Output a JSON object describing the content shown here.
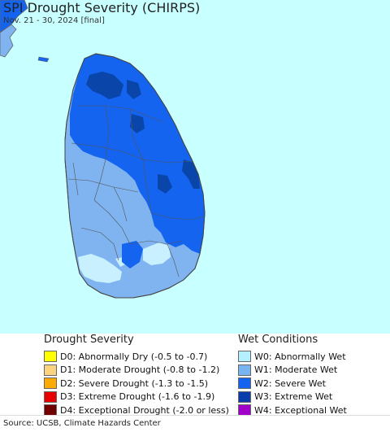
{
  "header": {
    "title": "SPI Drought Severity (CHIRPS)",
    "subtitle": "Nov. 21 - 30, 2024 [final]"
  },
  "map": {
    "ocean_color": "#c8ffff",
    "land_outline_color": "#666666",
    "colors": {
      "w0": "#c8f0ff",
      "w1": "#7fb4f0",
      "w2": "#1464f0",
      "w3": "#0a46aa",
      "w4": "#9600ff",
      "nodata_land": "#e8e8e8"
    }
  },
  "legend": {
    "drought": {
      "heading": "Drought Severity",
      "items": [
        {
          "label": "D0: Abnormally Dry (-0.5 to -0.7)",
          "color": "#ffff00"
        },
        {
          "label": "D1: Moderate Drought (-0.8 to -1.2)",
          "color": "#fcd37f"
        },
        {
          "label": "D2: Severe Drought (-1.3 to -1.5)",
          "color": "#ffaa00"
        },
        {
          "label": "D3: Extreme Drought (-1.6 to -1.9)",
          "color": "#e60000"
        },
        {
          "label": "D4: Exceptional Drought (-2.0 or less)",
          "color": "#730000"
        }
      ]
    },
    "wet": {
      "heading": "Wet Conditions",
      "items": [
        {
          "label": "W0: Abnormally Wet",
          "color": "#b4f0ff"
        },
        {
          "label": "W1: Moderate Wet",
          "color": "#78b4f0"
        },
        {
          "label": "W2: Severe Wet",
          "color": "#1464f0"
        },
        {
          "label": "W3: Extreme Wet",
          "color": "#0a3caa"
        },
        {
          "label": "W4: Exceptional Wet",
          "color": "#a000c8"
        }
      ]
    }
  },
  "footer": {
    "source": "Source: UCSB, Climate Hazards Center"
  }
}
